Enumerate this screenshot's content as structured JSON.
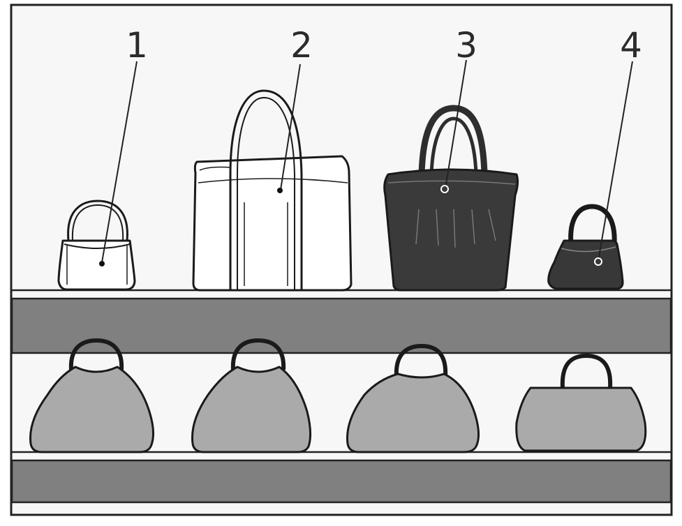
{
  "labels": [
    "1",
    "2",
    "3",
    "4"
  ],
  "colors": {
    "background": "#f7f7f7",
    "shelf": "#808080",
    "bag_grey": "#aaaaaa",
    "bag_dark": "#3a3a3a",
    "outline": "#1a1a1a"
  }
}
